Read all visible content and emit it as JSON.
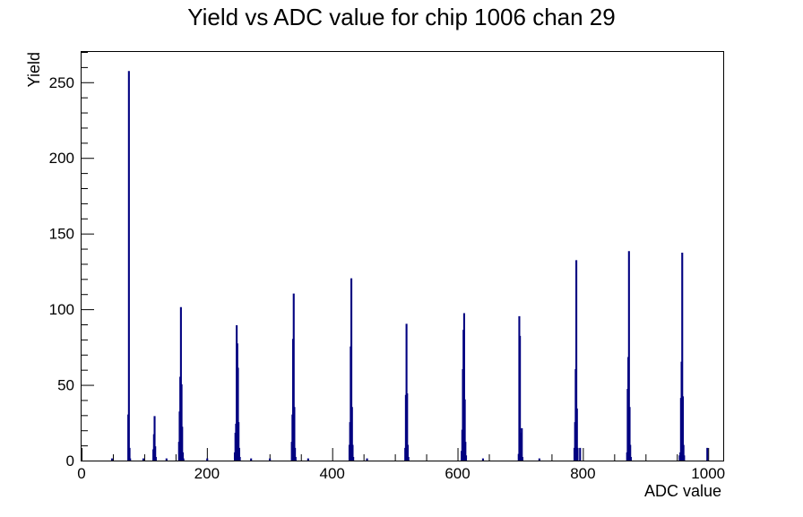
{
  "chart_data": {
    "type": "bar",
    "title": "Yield vs ADC value for chip 1006 chan 29",
    "xlabel": "ADC value",
    "ylabel": "Yield",
    "xlim": [
      0,
      1024
    ],
    "ylim": [
      0,
      270
    ],
    "x_ticks": [
      0,
      200,
      400,
      600,
      800,
      1000
    ],
    "y_ticks": [
      0,
      50,
      100,
      150,
      200,
      250
    ],
    "grid": false,
    "legend": "none",
    "line_color": "#000080",
    "bins": [
      {
        "x": 48,
        "y": 1
      },
      {
        "x": 74,
        "y": 30
      },
      {
        "x": 75,
        "y": 257
      },
      {
        "x": 76,
        "y": 8
      },
      {
        "x": 77,
        "y": 1
      },
      {
        "x": 98,
        "y": 1
      },
      {
        "x": 114,
        "y": 7
      },
      {
        "x": 115,
        "y": 17
      },
      {
        "x": 116,
        "y": 29
      },
      {
        "x": 117,
        "y": 9
      },
      {
        "x": 118,
        "y": 2
      },
      {
        "x": 135,
        "y": 1
      },
      {
        "x": 155,
        "y": 12
      },
      {
        "x": 156,
        "y": 32
      },
      {
        "x": 157,
        "y": 55
      },
      {
        "x": 158,
        "y": 101
      },
      {
        "x": 159,
        "y": 50
      },
      {
        "x": 160,
        "y": 22
      },
      {
        "x": 161,
        "y": 5
      },
      {
        "x": 162,
        "y": 1
      },
      {
        "x": 200,
        "y": 1
      },
      {
        "x": 244,
        "y": 5
      },
      {
        "x": 245,
        "y": 18
      },
      {
        "x": 246,
        "y": 24
      },
      {
        "x": 247,
        "y": 89
      },
      {
        "x": 248,
        "y": 77
      },
      {
        "x": 249,
        "y": 61
      },
      {
        "x": 250,
        "y": 25
      },
      {
        "x": 251,
        "y": 8
      },
      {
        "x": 252,
        "y": 2
      },
      {
        "x": 270,
        "y": 1
      },
      {
        "x": 300,
        "y": 1
      },
      {
        "x": 335,
        "y": 12
      },
      {
        "x": 336,
        "y": 30
      },
      {
        "x": 337,
        "y": 80
      },
      {
        "x": 338,
        "y": 110
      },
      {
        "x": 339,
        "y": 35
      },
      {
        "x": 340,
        "y": 8
      },
      {
        "x": 341,
        "y": 2
      },
      {
        "x": 361,
        "y": 1
      },
      {
        "x": 427,
        "y": 10
      },
      {
        "x": 428,
        "y": 25
      },
      {
        "x": 429,
        "y": 75
      },
      {
        "x": 430,
        "y": 120
      },
      {
        "x": 431,
        "y": 35
      },
      {
        "x": 432,
        "y": 10
      },
      {
        "x": 433,
        "y": 2
      },
      {
        "x": 455,
        "y": 1
      },
      {
        "x": 516,
        "y": 8
      },
      {
        "x": 517,
        "y": 43
      },
      {
        "x": 518,
        "y": 90
      },
      {
        "x": 519,
        "y": 44
      },
      {
        "x": 520,
        "y": 10
      },
      {
        "x": 521,
        "y": 2
      },
      {
        "x": 606,
        "y": 6
      },
      {
        "x": 607,
        "y": 20
      },
      {
        "x": 608,
        "y": 60
      },
      {
        "x": 609,
        "y": 86
      },
      {
        "x": 610,
        "y": 97
      },
      {
        "x": 611,
        "y": 40
      },
      {
        "x": 612,
        "y": 12
      },
      {
        "x": 613,
        "y": 3
      },
      {
        "x": 640,
        "y": 1
      },
      {
        "x": 697,
        "y": 4
      },
      {
        "x": 698,
        "y": 95
      },
      {
        "x": 699,
        "y": 82
      },
      {
        "x": 700,
        "y": 18
      },
      {
        "x": 701,
        "y": 6
      },
      {
        "x": 702,
        "y": 21
      },
      {
        "x": 703,
        "y": 2
      },
      {
        "x": 730,
        "y": 1
      },
      {
        "x": 786,
        "y": 8
      },
      {
        "x": 787,
        "y": 25
      },
      {
        "x": 788,
        "y": 60
      },
      {
        "x": 789,
        "y": 132
      },
      {
        "x": 790,
        "y": 34
      },
      {
        "x": 791,
        "y": 8
      },
      {
        "x": 795,
        "y": 8
      },
      {
        "x": 870,
        "y": 5
      },
      {
        "x": 871,
        "y": 47
      },
      {
        "x": 872,
        "y": 68
      },
      {
        "x": 873,
        "y": 138
      },
      {
        "x": 874,
        "y": 35
      },
      {
        "x": 875,
        "y": 10
      },
      {
        "x": 876,
        "y": 2
      },
      {
        "x": 954,
        "y": 3
      },
      {
        "x": 955,
        "y": 5
      },
      {
        "x": 956,
        "y": 41
      },
      {
        "x": 957,
        "y": 65
      },
      {
        "x": 958,
        "y": 137
      },
      {
        "x": 959,
        "y": 42
      },
      {
        "x": 960,
        "y": 10
      },
      {
        "x": 961,
        "y": 3
      },
      {
        "x": 998,
        "y": 8
      }
    ]
  }
}
